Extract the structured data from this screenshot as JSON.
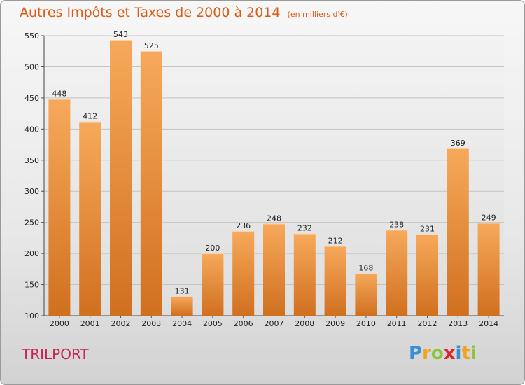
{
  "header": {
    "title": "Autres Impôts et Taxes de 2000 à 2014",
    "subtitle": "(en milliers d'€)"
  },
  "place_name": "TRILPORT",
  "logo": {
    "text": "Proxiti",
    "letters": [
      {
        "char": "P",
        "color": "#3a8fd6"
      },
      {
        "char": "r",
        "color": "#f0a31c"
      },
      {
        "char": "o",
        "color": "#8cc63f"
      },
      {
        "char": "x",
        "color": "#e0262c"
      },
      {
        "char": "i",
        "color": "#3a8fd6"
      },
      {
        "char": "t",
        "color": "#f0a31c"
      },
      {
        "char": "i",
        "color": "#8cc63f"
      }
    ]
  },
  "colors": {
    "title": "#dd5a14",
    "bar_top": "#f7a95b",
    "bar_bottom": "#d0701f",
    "place": "#c9254e"
  },
  "chart_data": {
    "type": "bar",
    "title": "Autres Impôts et Taxes de 2000 à 2014",
    "subtitle": "(en milliers d'€)",
    "categories": [
      "2000",
      "2001",
      "2002",
      "2003",
      "2004",
      "2005",
      "2006",
      "2007",
      "2008",
      "2009",
      "2010",
      "2011",
      "2012",
      "2013",
      "2014"
    ],
    "values": [
      448,
      412,
      543,
      525,
      131,
      200,
      236,
      248,
      232,
      212,
      168,
      238,
      231,
      369,
      249
    ],
    "ylim": [
      100,
      550
    ],
    "yticks": [
      100,
      150,
      200,
      250,
      300,
      350,
      400,
      450,
      500,
      550
    ],
    "grid": true,
    "data_labels": true
  }
}
